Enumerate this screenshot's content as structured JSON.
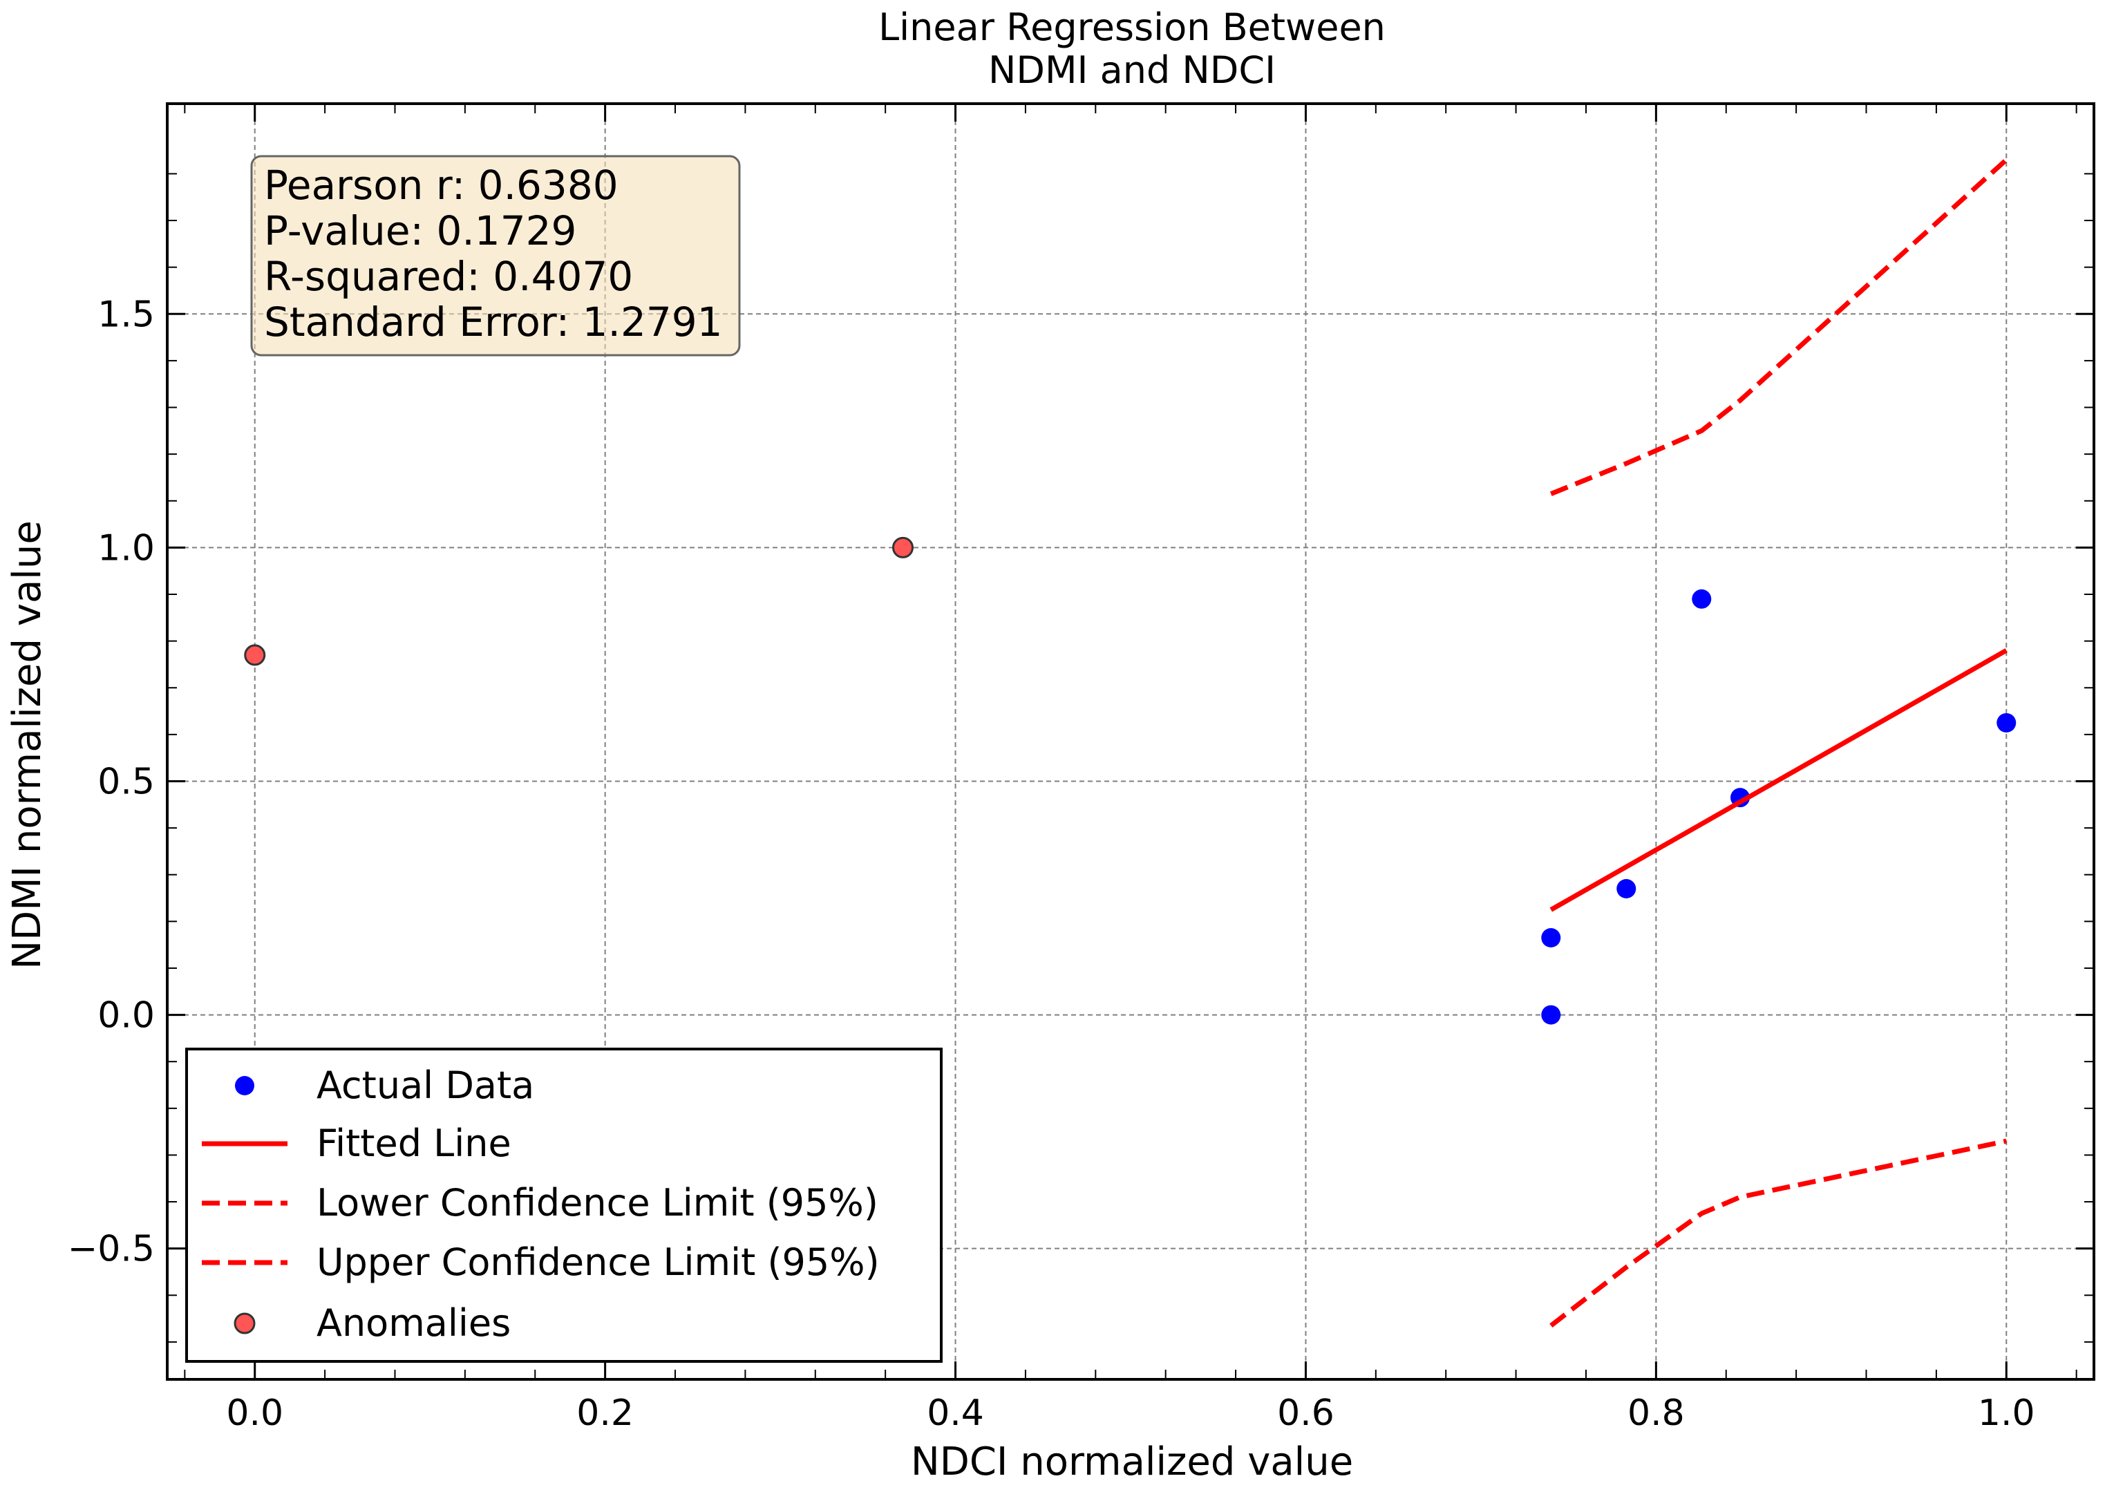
{
  "chart_data": {
    "type": "scatter",
    "title": [
      "Linear Regression Between",
      "NDMI and NDCI"
    ],
    "xlabel": "NDCI normalized value",
    "ylabel": "NDMI normalized value",
    "xlim": [
      -0.05,
      1.05
    ],
    "ylim": [
      -0.78,
      1.95
    ],
    "xticks": [
      0.0,
      0.2,
      0.4,
      0.6,
      0.8,
      1.0
    ],
    "xtick_labels": [
      "0.0",
      "0.2",
      "0.4",
      "0.6",
      "0.8",
      "1.0"
    ],
    "yticks": [
      -0.5,
      0.0,
      0.5,
      1.0,
      1.5
    ],
    "ytick_labels": [
      "−0.5",
      "0.0",
      "0.5",
      "1.0",
      "1.5"
    ],
    "grid": true,
    "legend_position": "lower-left",
    "stats": [
      "Pearson r: 0.6380",
      "P-value: 0.1729",
      "R-squared: 0.4070",
      "Standard Error: 1.2791"
    ],
    "series": [
      {
        "name": "Actual Data",
        "kind": "scatter",
        "color": "#0000ff",
        "points": [
          {
            "x": 0.74,
            "y": 0.0
          },
          {
            "x": 0.74,
            "y": 0.165
          },
          {
            "x": 0.783,
            "y": 0.27
          },
          {
            "x": 0.826,
            "y": 0.89
          },
          {
            "x": 0.848,
            "y": 0.465
          },
          {
            "x": 1.0,
            "y": 0.625
          }
        ]
      },
      {
        "name": "Fitted Line",
        "kind": "line",
        "style": "solid",
        "color": "#ff0000",
        "points": [
          {
            "x": 0.74,
            "y": 0.225
          },
          {
            "x": 1.0,
            "y": 0.78
          }
        ]
      },
      {
        "name": "Lower Confidence Limit (95%)",
        "kind": "line",
        "style": "dashed",
        "color": "#ff0000",
        "points": [
          {
            "x": 0.74,
            "y": -0.665
          },
          {
            "x": 0.783,
            "y": -0.54
          },
          {
            "x": 0.826,
            "y": -0.425
          },
          {
            "x": 0.848,
            "y": -0.39
          },
          {
            "x": 1.0,
            "y": -0.27
          }
        ]
      },
      {
        "name": "Upper Confidence Limit (95%)",
        "kind": "line",
        "style": "dashed",
        "color": "#ff0000",
        "points": [
          {
            "x": 0.74,
            "y": 1.115
          },
          {
            "x": 0.783,
            "y": 1.18
          },
          {
            "x": 0.826,
            "y": 1.25
          },
          {
            "x": 0.848,
            "y": 1.315
          },
          {
            "x": 1.0,
            "y": 1.83
          }
        ]
      },
      {
        "name": "Anomalies",
        "kind": "scatter",
        "color": "#ff5555",
        "edge_color": "#333333",
        "points": [
          {
            "x": 0.0,
            "y": 0.77
          },
          {
            "x": 0.37,
            "y": 1.0
          }
        ]
      }
    ]
  }
}
